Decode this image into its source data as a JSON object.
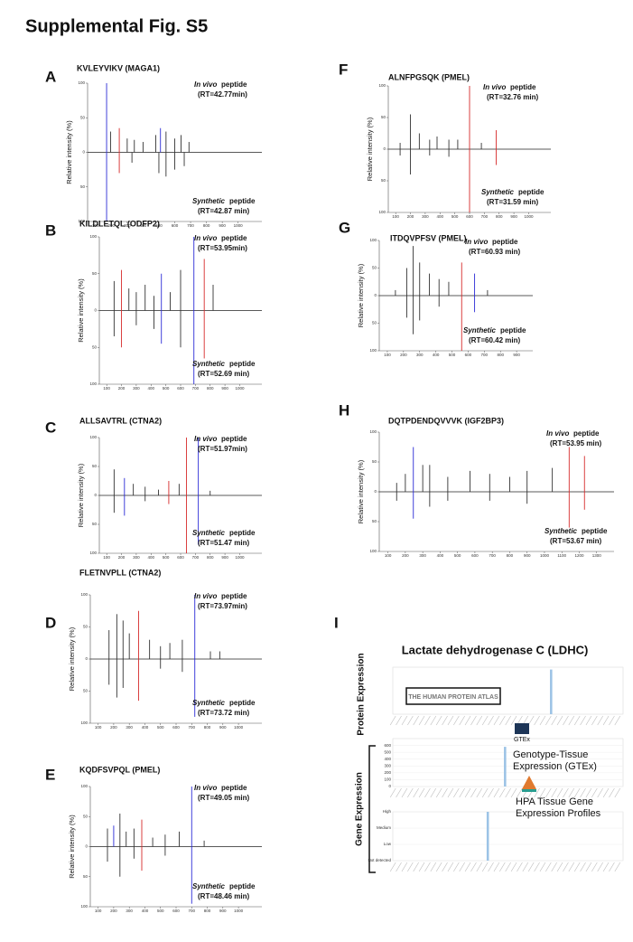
{
  "title": "Supplemental Fig. S5",
  "panels": [
    {
      "letter": "A",
      "peptide": "KVLEYVIKV (MAGA1)",
      "top_italic": "In vivo",
      "top_word": "peptide",
      "top_rt": "(RT=42.77min)",
      "bottom_word": "Synthetic",
      "bottom_word2": "peptide",
      "bottom_rt": "(RT=42.87 min)",
      "ylabel": "Relative intensity (%)",
      "xlim": [
        50,
        1150
      ],
      "xticks": [
        100,
        200,
        300,
        400,
        500,
        600,
        700,
        800,
        900,
        1000
      ],
      "ylim": [
        -100,
        100
      ],
      "yticks": [
        {
          "value": -100,
          "label": "100"
        },
        {
          "value": -50,
          "label": "50"
        },
        0,
        50,
        100
      ],
      "top": [
        [
          170,
          100,
          "#2b2bd6"
        ],
        [
          195,
          30,
          "#333"
        ],
        [
          250,
          35,
          "#d62b2b"
        ],
        [
          300,
          20,
          "#333"
        ],
        [
          345,
          18,
          "#333"
        ],
        [
          400,
          15,
          "#333"
        ],
        [
          480,
          25,
          "#333"
        ],
        [
          510,
          35,
          "#2b2bd6"
        ],
        [
          545,
          30,
          "#333"
        ],
        [
          600,
          20,
          "#333"
        ],
        [
          640,
          25,
          "#333"
        ],
        [
          690,
          15,
          "#333"
        ]
      ],
      "bottom": [
        [
          170,
          -100,
          "#2b2bd6"
        ],
        [
          250,
          -30,
          "#d62b2b"
        ],
        [
          330,
          -15,
          "#333"
        ],
        [
          500,
          -30,
          "#333"
        ],
        [
          545,
          -35,
          "#333"
        ],
        [
          600,
          -25,
          "#333"
        ],
        [
          660,
          -20,
          "#333"
        ]
      ]
    },
    {
      "letter": "B",
      "peptide": "KILDLETQL (ODFP2)",
      "top_italic": "In vivo",
      "top_word": "peptide",
      "top_rt": "(RT=53.95min)",
      "bottom_word": "Synthetic",
      "bottom_word2": "peptide",
      "bottom_rt": "(RT=52.69 min)",
      "ylabel": "Relative intensity (%)",
      "xlim": [
        50,
        1150
      ],
      "xticks": [
        100,
        200,
        300,
        400,
        500,
        600,
        700,
        800,
        900,
        1000
      ],
      "ylim": [
        -100,
        100
      ],
      "yticks": [
        {
          "value": -100,
          "label": "100"
        },
        {
          "value": -50,
          "label": "50"
        },
        0,
        50,
        100
      ],
      "top": [
        [
          150,
          40,
          "#333"
        ],
        [
          200,
          55,
          "#d62b2b"
        ],
        [
          250,
          30,
          "#333"
        ],
        [
          300,
          25,
          "#333"
        ],
        [
          360,
          35,
          "#333"
        ],
        [
          420,
          20,
          "#333"
        ],
        [
          470,
          50,
          "#2b2bd6"
        ],
        [
          530,
          25,
          "#333"
        ],
        [
          600,
          55,
          "#333"
        ],
        [
          690,
          100,
          "#2b2bd6"
        ],
        [
          760,
          70,
          "#d62b2b"
        ],
        [
          820,
          35,
          "#333"
        ]
      ],
      "bottom": [
        [
          150,
          -35,
          "#333"
        ],
        [
          200,
          -50,
          "#d62b2b"
        ],
        [
          300,
          -20,
          "#333"
        ],
        [
          420,
          -25,
          "#333"
        ],
        [
          470,
          -45,
          "#2b2bd6"
        ],
        [
          600,
          -50,
          "#333"
        ],
        [
          690,
          -100,
          "#2b2bd6"
        ],
        [
          760,
          -65,
          "#d62b2b"
        ]
      ]
    },
    {
      "letter": "C",
      "peptide": "ALLSAVTRL (CTNA2)",
      "top_italic": "In vivo",
      "top_word": "peptide",
      "top_rt": "(RT=51.97min)",
      "bottom_word": "Synthetic",
      "bottom_word2": "peptide",
      "bottom_rt": "(RT=51.47 min)",
      "ylabel": "Relative intensity (%)",
      "xlim": [
        50,
        1150
      ],
      "xticks": [
        100,
        200,
        300,
        400,
        500,
        600,
        700,
        800,
        900,
        1000
      ],
      "ylim": [
        -100,
        100
      ],
      "yticks": [
        {
          "value": -100,
          "label": "100"
        },
        {
          "value": -50,
          "label": "50"
        },
        0,
        50,
        100
      ],
      "top": [
        [
          150,
          45,
          "#333"
        ],
        [
          220,
          30,
          "#2b2bd6"
        ],
        [
          280,
          20,
          "#333"
        ],
        [
          360,
          15,
          "#333"
        ],
        [
          450,
          10,
          "#333"
        ],
        [
          520,
          25,
          "#d62b2b"
        ],
        [
          590,
          20,
          "#333"
        ],
        [
          640,
          100,
          "#d62b2b"
        ],
        [
          720,
          100,
          "#2b2bd6"
        ],
        [
          800,
          8,
          "#333"
        ]
      ],
      "bottom": [
        [
          150,
          -30,
          "#333"
        ],
        [
          220,
          -35,
          "#2b2bd6"
        ],
        [
          360,
          -10,
          "#333"
        ],
        [
          520,
          -15,
          "#d62b2b"
        ],
        [
          640,
          -100,
          "#d62b2b"
        ],
        [
          720,
          -85,
          "#2b2bd6"
        ]
      ]
    },
    {
      "letter": "D",
      "peptide": "FLETNVPLL (CTNA2)",
      "top_italic": "In vivo",
      "top_word": "peptide",
      "top_rt": "(RT=73.97min)",
      "bottom_word": "Synthetic",
      "bottom_word2": "peptide",
      "bottom_rt": "(RT=73.72 min)",
      "ylabel": "Relative intensity (%)",
      "xlim": [
        50,
        1150
      ],
      "xticks": [
        100,
        200,
        300,
        400,
        500,
        600,
        700,
        800,
        900,
        1000
      ],
      "ylim": [
        -100,
        100
      ],
      "yticks": [
        {
          "value": -100,
          "label": "100"
        },
        {
          "value": -50,
          "label": "50"
        },
        0,
        50,
        100
      ],
      "top": [
        [
          170,
          45,
          "#333"
        ],
        [
          220,
          70,
          "#333"
        ],
        [
          260,
          60,
          "#333"
        ],
        [
          300,
          40,
          "#333"
        ],
        [
          360,
          75,
          "#d62b2b"
        ],
        [
          430,
          30,
          "#333"
        ],
        [
          500,
          20,
          "#333"
        ],
        [
          560,
          25,
          "#333"
        ],
        [
          640,
          30,
          "#333"
        ],
        [
          720,
          100,
          "#2b2bd6"
        ],
        [
          820,
          12,
          "#333"
        ],
        [
          880,
          12,
          "#333"
        ]
      ],
      "bottom": [
        [
          170,
          -40,
          "#333"
        ],
        [
          220,
          -60,
          "#333"
        ],
        [
          260,
          -45,
          "#333"
        ],
        [
          360,
          -65,
          "#d62b2b"
        ],
        [
          500,
          -15,
          "#333"
        ],
        [
          640,
          -20,
          "#333"
        ],
        [
          720,
          -90,
          "#2b2bd6"
        ]
      ]
    },
    {
      "letter": "E",
      "peptide": "KQDFSVPQL (PMEL)",
      "top_italic": "In vivo",
      "top_word": "peptide",
      "top_rt": "(RT=49.05 min)",
      "bottom_word": "Synthetic",
      "bottom_word2": "peptide",
      "bottom_rt": "(RT=48.46 min)",
      "ylabel": "Relative intensity (%)",
      "xlim": [
        50,
        1150
      ],
      "xticks": [
        100,
        200,
        300,
        400,
        500,
        600,
        700,
        800,
        900,
        1000
      ],
      "ylim": [
        -100,
        100
      ],
      "yticks": [
        {
          "value": -100,
          "label": "100"
        },
        {
          "value": -50,
          "label": "50"
        },
        0,
        50,
        100
      ],
      "top": [
        [
          160,
          30,
          "#333"
        ],
        [
          200,
          35,
          "#2b2bd6"
        ],
        [
          240,
          55,
          "#333"
        ],
        [
          280,
          25,
          "#333"
        ],
        [
          330,
          30,
          "#333"
        ],
        [
          380,
          45,
          "#d62b2b"
        ],
        [
          450,
          15,
          "#333"
        ],
        [
          530,
          20,
          "#333"
        ],
        [
          620,
          25,
          "#333"
        ],
        [
          700,
          100,
          "#2b2bd6"
        ],
        [
          780,
          10,
          "#333"
        ]
      ],
      "bottom": [
        [
          160,
          -25,
          "#333"
        ],
        [
          240,
          -50,
          "#333"
        ],
        [
          330,
          -20,
          "#333"
        ],
        [
          380,
          -40,
          "#d62b2b"
        ],
        [
          530,
          -15,
          "#333"
        ],
        [
          700,
          -95,
          "#2b2bd6"
        ]
      ]
    },
    {
      "letter": "F",
      "peptide": "ALNFPGSQK (PMEL)",
      "top_italic": "In vivo",
      "top_word": "peptide",
      "top_rt": "(RT=32.76 min)",
      "bottom_word": "Synthetic",
      "bottom_word2": "peptide",
      "bottom_rt": "(RT=31.59 min)",
      "ylabel": "Relative intensity (%)",
      "xlim": [
        50,
        1150
      ],
      "xticks": [
        100,
        200,
        300,
        400,
        500,
        600,
        700,
        800,
        900,
        1000
      ],
      "ylim": [
        -100,
        100
      ],
      "yticks": [
        {
          "value": -100,
          "label": "100"
        },
        {
          "value": -50,
          "label": "50"
        },
        0,
        50,
        100
      ],
      "top": [
        [
          130,
          10,
          "#333"
        ],
        [
          200,
          55,
          "#333"
        ],
        [
          260,
          25,
          "#333"
        ],
        [
          330,
          15,
          "#333"
        ],
        [
          380,
          20,
          "#333"
        ],
        [
          460,
          15,
          "#333"
        ],
        [
          520,
          15,
          "#333"
        ],
        [
          600,
          100,
          "#d62b2b"
        ],
        [
          680,
          10,
          "#333"
        ],
        [
          780,
          30,
          "#d62b2b"
        ]
      ],
      "bottom": [
        [
          130,
          -10,
          "#333"
        ],
        [
          200,
          -40,
          "#333"
        ],
        [
          330,
          -10,
          "#333"
        ],
        [
          460,
          -12,
          "#333"
        ],
        [
          600,
          -100,
          "#d62b2b"
        ],
        [
          780,
          -25,
          "#d62b2b"
        ]
      ]
    },
    {
      "letter": "G",
      "peptide": "ITDQVPFSV (PMEL)",
      "top_italic": "In vivo",
      "top_word": "peptide",
      "top_rt": "(RT=60.93 min)",
      "bottom_word": "Synthetic",
      "bottom_word2": "peptide",
      "bottom_rt": "(RT=60.42 min)",
      "ylabel": "Relative intensity (%)",
      "xlim": [
        50,
        1000
      ],
      "xticks": [
        100,
        200,
        300,
        400,
        500,
        600,
        700,
        800,
        900
      ],
      "ylim": [
        -100,
        100
      ],
      "yticks": [
        {
          "value": -100,
          "label": "100"
        },
        {
          "value": -50,
          "label": "50"
        },
        0,
        50,
        100
      ],
      "top": [
        [
          150,
          10,
          "#333"
        ],
        [
          220,
          50,
          "#333"
        ],
        [
          260,
          90,
          "#333"
        ],
        [
          300,
          60,
          "#333"
        ],
        [
          360,
          40,
          "#333"
        ],
        [
          420,
          30,
          "#333"
        ],
        [
          480,
          25,
          "#333"
        ],
        [
          560,
          60,
          "#d62b2b"
        ],
        [
          640,
          40,
          "#2b2bd6"
        ],
        [
          720,
          10,
          "#333"
        ]
      ],
      "bottom": [
        [
          220,
          -40,
          "#333"
        ],
        [
          260,
          -70,
          "#333"
        ],
        [
          300,
          -45,
          "#333"
        ],
        [
          420,
          -20,
          "#333"
        ],
        [
          560,
          -100,
          "#d62b2b"
        ],
        [
          640,
          -30,
          "#2b2bd6"
        ]
      ]
    },
    {
      "letter": "H",
      "peptide": "DQTPDENDQVVVK (IGF2BP3)",
      "top_italic": "In vivo",
      "top_word": "peptide",
      "top_rt": "(RT=53.95 min)",
      "bottom_word": "Synthetic",
      "bottom_word2": "peptide",
      "bottom_rt": "(RT=53.67 min)",
      "ylabel": "Relative intensity (%)",
      "xlim": [
        50,
        1400
      ],
      "xticks": [
        100,
        200,
        300,
        400,
        500,
        600,
        700,
        800,
        900,
        1000,
        1100,
        1200,
        1300
      ],
      "ylim": [
        -100,
        100
      ],
      "yticks": [
        {
          "value": -100,
          "label": "100"
        },
        {
          "value": -50,
          "label": "50"
        },
        0,
        50,
        100
      ],
      "top": [
        [
          150,
          15,
          "#333"
        ],
        [
          200,
          30,
          "#333"
        ],
        [
          246,
          75,
          "#2b2bd6"
        ],
        [
          300,
          45,
          "#333"
        ],
        [
          340,
          45,
          "#333"
        ],
        [
          444,
          25,
          "#333"
        ],
        [
          572,
          35,
          "#333"
        ],
        [
          685,
          30,
          "#333"
        ],
        [
          800,
          25,
          "#333"
        ],
        [
          900,
          35,
          "#333"
        ],
        [
          1045,
          40,
          "#333"
        ],
        [
          1142,
          75,
          "#d62b2b"
        ],
        [
          1230,
          60,
          "#d62b2b"
        ]
      ],
      "bottom": [
        [
          150,
          -15,
          "#333"
        ],
        [
          246,
          -45,
          "#2b2bd6"
        ],
        [
          340,
          -25,
          "#333"
        ],
        [
          444,
          -15,
          "#333"
        ],
        [
          685,
          -15,
          "#333"
        ],
        [
          900,
          -20,
          "#333"
        ],
        [
          1142,
          -60,
          "#d62b2b"
        ],
        [
          1230,
          -30,
          "#d62b2b"
        ]
      ]
    }
  ],
  "panel_i": {
    "letter": "I",
    "title": "Lactate dehydrogenase C (LDHC)",
    "protein_label": "Protein Expression",
    "gene_label": "Gene Expression",
    "hpa_logo": "THE HUMAN PROTEIN ATLAS",
    "gtex_logo": "GTEx",
    "gtex_name": "Genotype-Tissue Expression (GTEx)",
    "hpa_profiles": "HPA Tissue Gene Expression Profiles",
    "charts": [
      {
        "type": "bar",
        "color": "#9cc3e6",
        "ylim": [
          0,
          100
        ],
        "yticks": [],
        "values": [
          0,
          0,
          0,
          0,
          0,
          0,
          0,
          0,
          0,
          0,
          0,
          0,
          0,
          0,
          0,
          0,
          0,
          0,
          0,
          0,
          0,
          0,
          0,
          0,
          0,
          0,
          0,
          95,
          0,
          0,
          0,
          0,
          0,
          0,
          0,
          0,
          0,
          0,
          0,
          0
        ]
      },
      {
        "type": "bar",
        "color": "#9cc3e6",
        "ylim": [
          0,
          700
        ],
        "yticks": [
          0,
          100,
          200,
          300,
          400,
          500,
          600
        ],
        "values": [
          0,
          0,
          0,
          0,
          0,
          0,
          0,
          0,
          0,
          0,
          0,
          0,
          0,
          0,
          0,
          0,
          0,
          0,
          0,
          580,
          0,
          0,
          0,
          0,
          0,
          0,
          0,
          0,
          0,
          0,
          0,
          0,
          0,
          0,
          0,
          0,
          0,
          0,
          0,
          0
        ]
      },
      {
        "type": "bar",
        "color": "#9cc3e6",
        "ylim": [
          0,
          3
        ],
        "yticks": [
          {
            "value": 0,
            "label": "Not detected"
          },
          {
            "value": 1,
            "label": "Low"
          },
          {
            "value": 2,
            "label": "Medium"
          },
          {
            "value": 3,
            "label": "High"
          }
        ],
        "values": [
          0,
          0,
          0,
          0,
          0,
          0,
          0,
          0,
          0,
          0,
          0,
          0,
          0,
          0,
          0,
          0,
          3,
          0,
          0,
          0,
          0,
          0,
          0,
          0,
          0,
          0,
          0,
          0,
          0,
          0,
          0,
          0,
          0,
          0,
          0,
          0,
          0,
          0,
          0,
          0
        ]
      }
    ]
  }
}
